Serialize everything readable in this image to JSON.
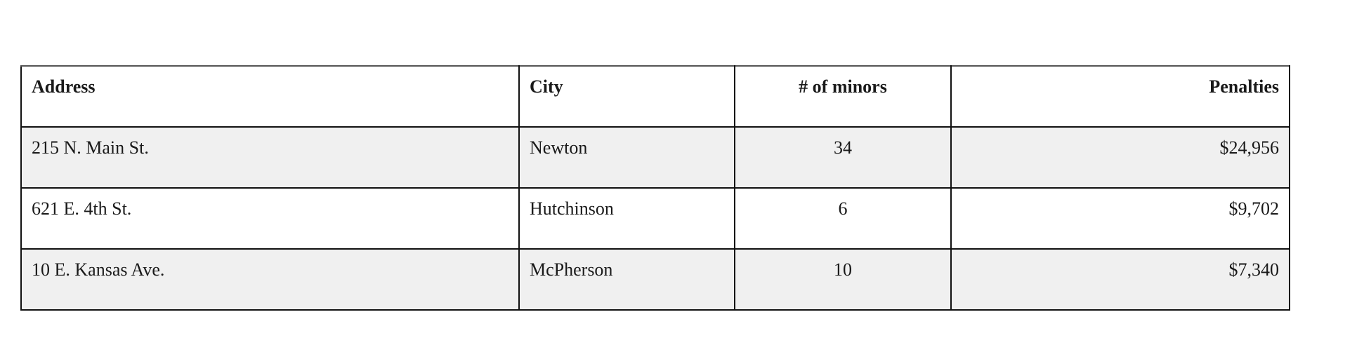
{
  "table": {
    "headers": [
      "Address",
      "City",
      "# of minors",
      "Penalties"
    ],
    "rows": [
      [
        "215 N. Main St.",
        "Newton",
        "34",
        "$24,956"
      ],
      [
        "621 E. 4th St.",
        "Hutchinson",
        "6",
        "$9,702"
      ],
      [
        "10 E. Kansas Ave.",
        "McPherson",
        "10",
        "$7,340"
      ]
    ]
  },
  "colors": {
    "stripe": "#f0f0f0",
    "border": "#111111"
  }
}
